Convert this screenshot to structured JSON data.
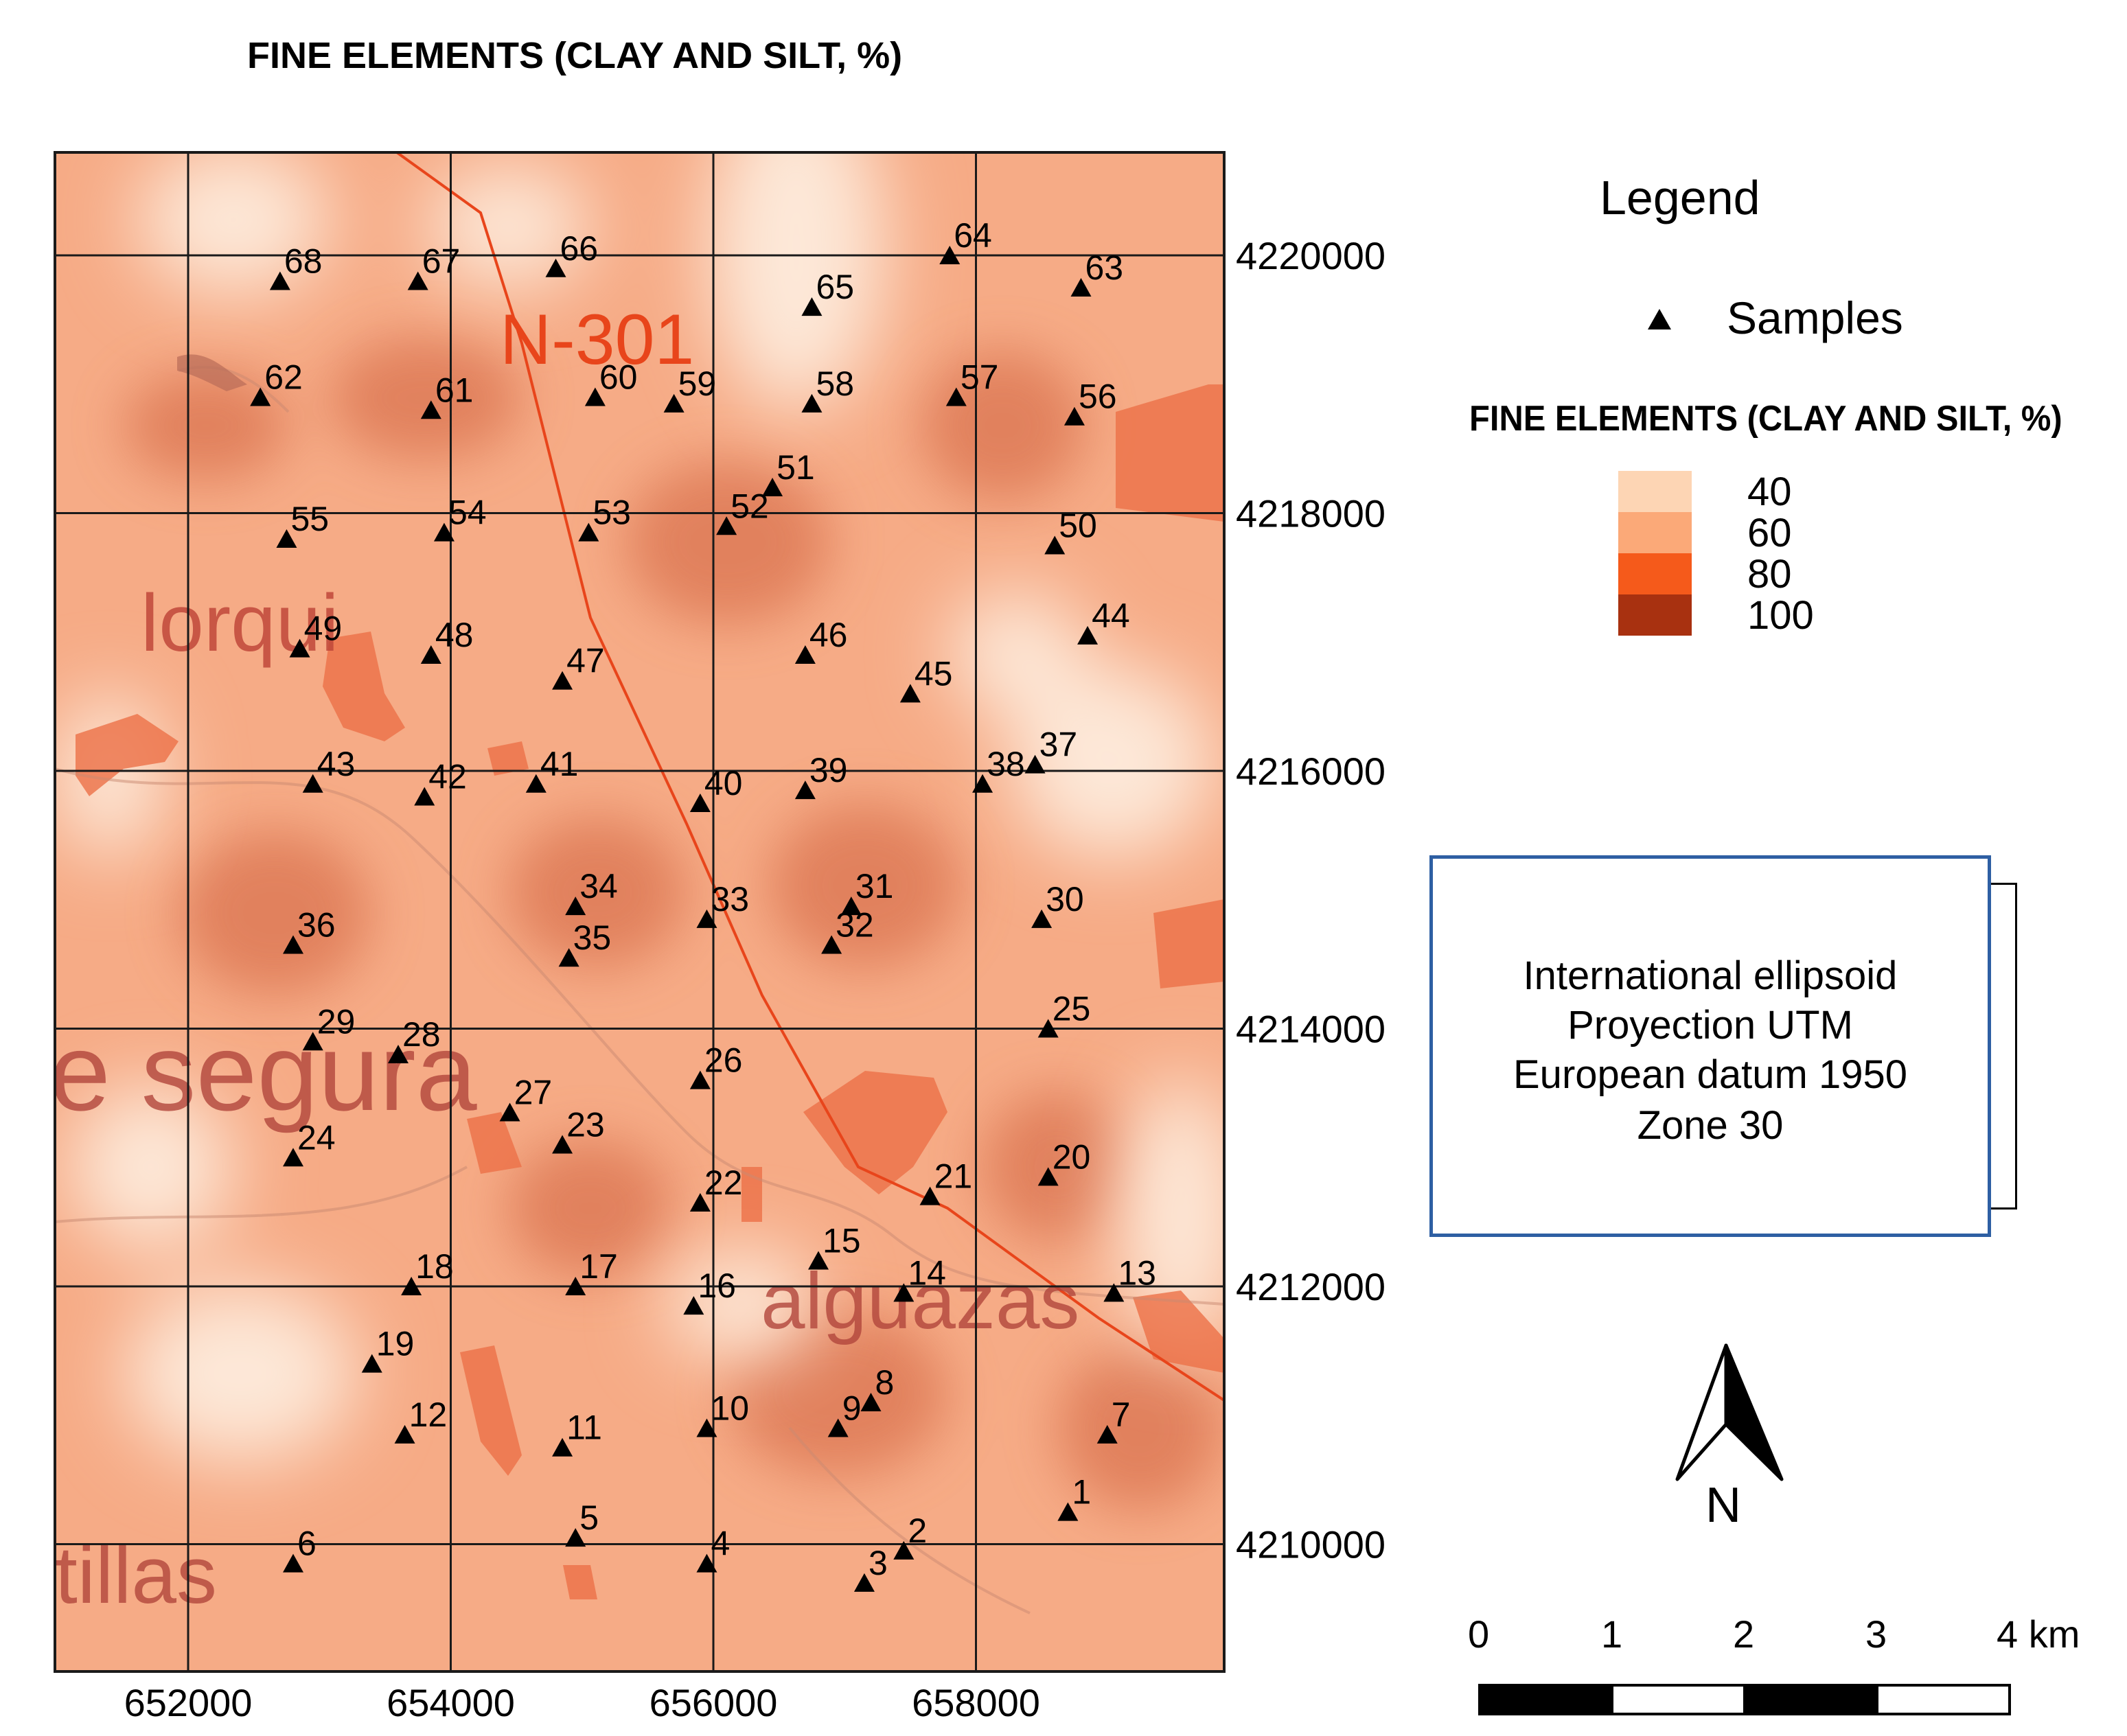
{
  "title": "FINE ELEMENTS (CLAY AND SILT, %)",
  "map": {
    "x_ticks": [
      "652000",
      "654000",
      "656000",
      "658000"
    ],
    "y_ticks": [
      "4220000",
      "4218000",
      "4216000",
      "4214000",
      "4212000",
      "4210000"
    ],
    "place_labels": {
      "road": "N-301",
      "lorqui": "lorqui",
      "segura": "e segura",
      "alguazas": "alguazas",
      "tillas": "tillas"
    },
    "samples": [
      {
        "id": "1",
        "x": 658700,
        "y": 4210250
      },
      {
        "id": "2",
        "x": 657450,
        "y": 4209950
      },
      {
        "id": "3",
        "x": 657150,
        "y": 4209700
      },
      {
        "id": "4",
        "x": 655950,
        "y": 4209850
      },
      {
        "id": "5",
        "x": 654950,
        "y": 4210050
      },
      {
        "id": "6",
        "x": 652800,
        "y": 4209850
      },
      {
        "id": "7",
        "x": 659000,
        "y": 4210850
      },
      {
        "id": "8",
        "x": 657200,
        "y": 4211100
      },
      {
        "id": "9",
        "x": 656950,
        "y": 4210900
      },
      {
        "id": "10",
        "x": 655950,
        "y": 4210900
      },
      {
        "id": "11",
        "x": 654850,
        "y": 4210750
      },
      {
        "id": "12",
        "x": 653650,
        "y": 4210850
      },
      {
        "id": "13",
        "x": 659050,
        "y": 4211950
      },
      {
        "id": "14",
        "x": 657450,
        "y": 4211950
      },
      {
        "id": "15",
        "x": 656800,
        "y": 4212200
      },
      {
        "id": "16",
        "x": 655850,
        "y": 4211850
      },
      {
        "id": "17",
        "x": 654950,
        "y": 4212000
      },
      {
        "id": "18",
        "x": 653700,
        "y": 4212000
      },
      {
        "id": "19",
        "x": 653400,
        "y": 4211400
      },
      {
        "id": "20",
        "x": 658550,
        "y": 4212850
      },
      {
        "id": "21",
        "x": 657650,
        "y": 4212700
      },
      {
        "id": "22",
        "x": 655900,
        "y": 4212650
      },
      {
        "id": "23",
        "x": 654850,
        "y": 4213100
      },
      {
        "id": "24",
        "x": 652800,
        "y": 4213000
      },
      {
        "id": "25",
        "x": 658550,
        "y": 4214000
      },
      {
        "id": "26",
        "x": 655900,
        "y": 4213600
      },
      {
        "id": "27",
        "x": 654450,
        "y": 4213350
      },
      {
        "id": "28",
        "x": 653600,
        "y": 4213800
      },
      {
        "id": "29",
        "x": 652950,
        "y": 4213900
      },
      {
        "id": "30",
        "x": 658500,
        "y": 4214850
      },
      {
        "id": "31",
        "x": 657050,
        "y": 4214950
      },
      {
        "id": "32",
        "x": 656900,
        "y": 4214650
      },
      {
        "id": "33",
        "x": 655950,
        "y": 4214850
      },
      {
        "id": "34",
        "x": 654950,
        "y": 4214950
      },
      {
        "id": "35",
        "x": 654900,
        "y": 4214550
      },
      {
        "id": "36",
        "x": 652800,
        "y": 4214650
      },
      {
        "id": "37",
        "x": 658450,
        "y": 4216050
      },
      {
        "id": "38",
        "x": 658050,
        "y": 4215900
      },
      {
        "id": "39",
        "x": 656700,
        "y": 4215850
      },
      {
        "id": "40",
        "x": 655900,
        "y": 4215750
      },
      {
        "id": "41",
        "x": 654650,
        "y": 4215900
      },
      {
        "id": "42",
        "x": 653800,
        "y": 4215800
      },
      {
        "id": "43",
        "x": 652950,
        "y": 4215900
      },
      {
        "id": "44",
        "x": 658850,
        "y": 4217050
      },
      {
        "id": "45",
        "x": 657500,
        "y": 4216600
      },
      {
        "id": "46",
        "x": 656700,
        "y": 4216900
      },
      {
        "id": "47",
        "x": 654850,
        "y": 4216700
      },
      {
        "id": "48",
        "x": 653850,
        "y": 4216900
      },
      {
        "id": "49",
        "x": 652850,
        "y": 4216950
      },
      {
        "id": "50",
        "x": 658600,
        "y": 4217750
      },
      {
        "id": "51",
        "x": 656450,
        "y": 4218200
      },
      {
        "id": "52",
        "x": 656100,
        "y": 4217900
      },
      {
        "id": "53",
        "x": 655050,
        "y": 4217850
      },
      {
        "id": "54",
        "x": 653950,
        "y": 4217850
      },
      {
        "id": "55",
        "x": 652750,
        "y": 4217800
      },
      {
        "id": "56",
        "x": 658750,
        "y": 4218750
      },
      {
        "id": "57",
        "x": 657850,
        "y": 4218900
      },
      {
        "id": "58",
        "x": 656750,
        "y": 4218850
      },
      {
        "id": "59",
        "x": 655700,
        "y": 4218850
      },
      {
        "id": "60",
        "x": 655100,
        "y": 4218900
      },
      {
        "id": "61",
        "x": 653850,
        "y": 4218800
      },
      {
        "id": "62",
        "x": 652550,
        "y": 4218900
      },
      {
        "id": "63",
        "x": 658800,
        "y": 4219750
      },
      {
        "id": "64",
        "x": 657800,
        "y": 4220000
      },
      {
        "id": "65",
        "x": 656750,
        "y": 4219600
      },
      {
        "id": "66",
        "x": 654800,
        "y": 4219900
      },
      {
        "id": "67",
        "x": 653750,
        "y": 4219800
      },
      {
        "id": "68",
        "x": 652700,
        "y": 4219800
      }
    ]
  },
  "legend": {
    "title": "Legend",
    "samples_label": "Samples",
    "fine_elements_title": "FINE ELEMENTS (CLAY AND SILT, %)",
    "classes": [
      {
        "label": "40",
        "color": "#fdd5b4"
      },
      {
        "label": "60",
        "color": "#fba978"
      },
      {
        "label": "80",
        "color": "#f55a1b"
      },
      {
        "label": "100",
        "color": "#a83110"
      }
    ]
  },
  "projection": {
    "line1": "International ellipsoid",
    "line2": "Proyection UTM",
    "line3": "European datum 1950",
    "line4": "Zone 30"
  },
  "north_arrow": {
    "label": "N"
  },
  "scale_bar": {
    "labels": [
      "0",
      "1",
      "2",
      "3",
      "4 km"
    ]
  },
  "colors": {
    "base": "#f6ab86",
    "high": "#e2805d",
    "low": "#fce6d6",
    "urban": "#ec7047",
    "road": "#e8451b",
    "grid": "#1a1a1a"
  }
}
